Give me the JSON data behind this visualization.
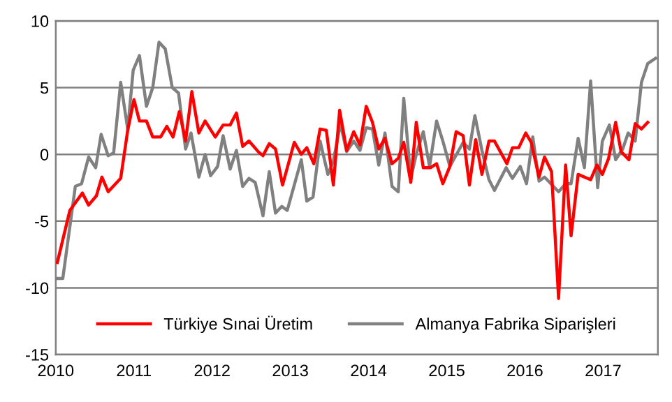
{
  "chart_data": {
    "type": "line",
    "xlim": [
      2010,
      2017.7
    ],
    "xticks": [
      2010,
      2011,
      2012,
      2013,
      2014,
      2015,
      2016,
      2017
    ],
    "ylim": [
      -15,
      10
    ],
    "yticks": [
      -15,
      -10,
      -5,
      0,
      5,
      10
    ],
    "grid": "y",
    "legend": "bottom",
    "marker": "none",
    "line_style": "solid",
    "series": [
      {
        "name": "Türkiye Sınai Üretim",
        "color": "#ff0000",
        "x": [
          2010.02,
          2010.18,
          2010.34,
          2010.42,
          2010.52,
          2010.59,
          2010.67,
          2010.83,
          2010.92,
          2011.0,
          2011.07,
          2011.16,
          2011.24,
          2011.34,
          2011.42,
          2011.5,
          2011.58,
          2011.66,
          2011.74,
          2011.83,
          2011.91,
          2012.04,
          2012.14,
          2012.23,
          2012.31,
          2012.39,
          2012.47,
          2012.59,
          2012.65,
          2012.73,
          2012.81,
          2012.9,
          2013.05,
          2013.14,
          2013.21,
          2013.3,
          2013.38,
          2013.46,
          2013.55,
          2013.63,
          2013.72,
          2013.81,
          2013.89,
          2013.97,
          2014.05,
          2014.13,
          2014.21,
          2014.3,
          2014.38,
          2014.45,
          2014.54,
          2014.61,
          2014.7,
          2014.79,
          2014.87,
          2014.95,
          2015.04,
          2015.12,
          2015.21,
          2015.29,
          2015.37,
          2015.45,
          2015.54,
          2015.61,
          2015.77,
          2015.84,
          2015.92,
          2016.01,
          2016.08,
          2016.18,
          2016.25,
          2016.34,
          2016.43,
          2016.52,
          2016.59,
          2016.68,
          2016.84,
          2016.92,
          2016.99,
          2017.07,
          2017.16,
          2017.23,
          2017.33,
          2017.41,
          2017.49,
          2017.57
        ],
        "values": [
          -8.1,
          -4.2,
          -2.9,
          -3.8,
          -3.1,
          -1.7,
          -2.8,
          -1.8,
          1.8,
          4.1,
          2.5,
          2.5,
          1.3,
          1.3,
          2.1,
          1.3,
          3.2,
          1.0,
          4.7,
          1.6,
          2.5,
          1.3,
          2.2,
          2.2,
          3.1,
          0.6,
          1.0,
          0.2,
          -0.1,
          0.8,
          0.4,
          -2.3,
          0.9,
          0,
          0.5,
          -0.7,
          1.9,
          1.8,
          -2.3,
          3.3,
          0.3,
          1.7,
          0.7,
          3.6,
          2.4,
          0.4,
          1.2,
          -0.7,
          -0.3,
          0.9,
          -2.1,
          2.4,
          -1.0,
          -1.0,
          -0.7,
          -2.2,
          -0.9,
          1.7,
          1.4,
          -2.3,
          1.1,
          -1.5,
          1.0,
          1.0,
          -0.7,
          0.5,
          0.5,
          1.6,
          0.9,
          -1.7,
          -0.2,
          -1.3,
          -10.8,
          -0.8,
          -6.1,
          -1.5,
          -1.9,
          -0.8,
          -1.5,
          -0.3,
          2.4,
          0.2,
          -0.4,
          2.3,
          1.9,
          2.4
        ]
      },
      {
        "name": "Almanya Fabrika Siparişleri",
        "color": "#808080",
        "x": [
          2010.0,
          2010.09,
          2010.25,
          2010.33,
          2010.42,
          2010.51,
          2010.58,
          2010.67,
          2010.74,
          2010.83,
          2010.92,
          2010.99,
          2011.07,
          2011.16,
          2011.24,
          2011.32,
          2011.4,
          2011.49,
          2011.57,
          2011.66,
          2011.73,
          2011.83,
          2011.91,
          2011.98,
          2012.07,
          2012.14,
          2012.23,
          2012.31,
          2012.39,
          2012.47,
          2012.55,
          2012.65,
          2012.73,
          2012.81,
          2012.89,
          2012.96,
          2013.14,
          2013.21,
          2013.29,
          2013.38,
          2013.48,
          2013.55,
          2013.64,
          2013.72,
          2013.81,
          2013.89,
          2013.97,
          2014.05,
          2014.13,
          2014.21,
          2014.3,
          2014.38,
          2014.45,
          2014.54,
          2014.61,
          2014.7,
          2014.78,
          2014.87,
          2014.95,
          2015.04,
          2015.21,
          2015.29,
          2015.36,
          2015.45,
          2015.54,
          2015.61,
          2015.76,
          2015.84,
          2015.94,
          2016.02,
          2016.1,
          2016.18,
          2016.25,
          2016.43,
          2016.52,
          2016.59,
          2016.68,
          2016.76,
          2016.84,
          2016.93,
          2016.99,
          2017.08,
          2017.16,
          2017.25,
          2017.32,
          2017.41,
          2017.49,
          2017.57,
          2017.67
        ],
        "values": [
          -9.3,
          -9.3,
          -2.4,
          -2.2,
          -0.2,
          -1.0,
          1.5,
          -0.1,
          0.1,
          5.4,
          1.9,
          6.3,
          7.4,
          3.6,
          5.0,
          8.4,
          7.9,
          5.0,
          4.6,
          0.4,
          1.6,
          -1.7,
          0,
          -1.6,
          -0.9,
          1.4,
          -1.1,
          0.3,
          -2.4,
          -1.8,
          -2.1,
          -4.6,
          -1.3,
          -4.4,
          -3.9,
          -4.2,
          -0.4,
          -3.5,
          -3.2,
          1.0,
          -1.5,
          -0.5,
          2.3,
          0.2,
          1.0,
          0.3,
          2.0,
          1.9,
          -0.8,
          1.6,
          -2.4,
          -2.8,
          4.2,
          -1.8,
          0,
          1.7,
          -0.9,
          2.5,
          1.0,
          -0.9,
          0.9,
          0.4,
          2.9,
          0.3,
          -1.9,
          -2.7,
          -1.0,
          -1.8,
          -0.9,
          -2.2,
          1.3,
          -2.0,
          -1.7,
          -2.8,
          -2.2,
          -2.2,
          1.2,
          -1.0,
          5.5,
          -2.5,
          1.0,
          2.2,
          -0.4,
          0.4,
          1.6,
          1.0,
          5.4,
          6.8,
          7.2
        ]
      }
    ]
  }
}
